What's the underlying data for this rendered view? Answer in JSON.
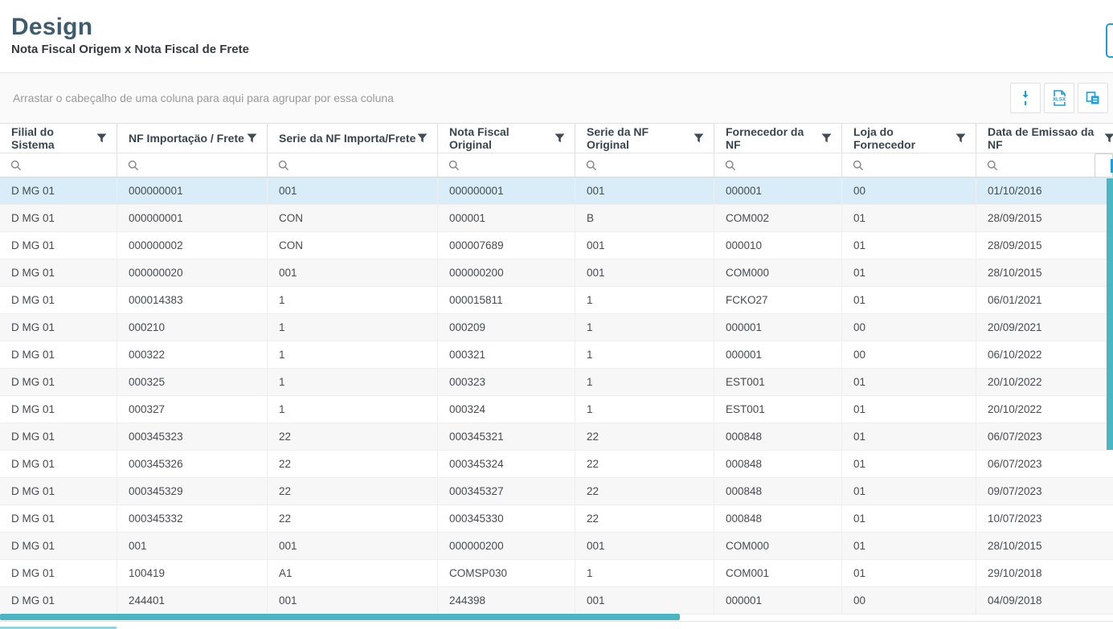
{
  "header": {
    "title": "Design",
    "subtitle": "Nota Fiscal Origem x Nota Fiscal de Frete"
  },
  "toolbar": {
    "group_hint": "Arrastar o cabeçalho de uma coluna para aqui para agrupar por essa coluna",
    "buttons": [
      {
        "name": "row-height-toggle",
        "icon": "collapse-vertical-arrows-icon"
      },
      {
        "name": "export-xlsx",
        "icon": "xlsx-file-icon",
        "label": "XLSX"
      },
      {
        "name": "column-chooser",
        "icon": "column-chooser-icon"
      }
    ]
  },
  "grid": {
    "columns": [
      {
        "label": "Filial do Sistema",
        "filterable": true
      },
      {
        "label": "NF Importaçäo / Frete",
        "filterable": true
      },
      {
        "label": "Serie da NF Importa/Frete",
        "filterable": true
      },
      {
        "label": "Nota Fiscal Original",
        "filterable": true
      },
      {
        "label": "Serie da NF Original",
        "filterable": true
      },
      {
        "label": "Fornecedor da NF",
        "filterable": true
      },
      {
        "label": "Loja do Fornecedor",
        "filterable": true
      },
      {
        "label": "Data de Emissao da NF",
        "filterable": true
      }
    ],
    "filter_values": [
      "",
      "",
      "",
      "",
      "",
      "",
      "",
      ""
    ],
    "selected_row_index": 0,
    "rows": [
      [
        "D MG 01",
        "000000001",
        "001",
        "000000001",
        "001",
        "000001",
        "00",
        "01/10/2016"
      ],
      [
        "D MG 01",
        "000000001",
        "CON",
        "000001",
        "B",
        "COM002",
        "01",
        "28/09/2015"
      ],
      [
        "D MG 01",
        "000000002",
        "CON",
        "000007689",
        "001",
        "000010",
        "01",
        "28/09/2015"
      ],
      [
        "D MG 01",
        "000000020",
        "001",
        "000000200",
        "001",
        "COM000",
        "01",
        "28/10/2015"
      ],
      [
        "D MG 01",
        "000014383",
        "1",
        "000015811",
        "1",
        "FCKO27",
        "01",
        "06/01/2021"
      ],
      [
        "D MG 01",
        "000210",
        "1",
        "000209",
        "1",
        "000001",
        "00",
        "20/09/2021"
      ],
      [
        "D MG 01",
        "000322",
        "1",
        "000321",
        "1",
        "000001",
        "00",
        "06/10/2022"
      ],
      [
        "D MG 01",
        "000325",
        "1",
        "000323",
        "1",
        "EST001",
        "01",
        "20/10/2022"
      ],
      [
        "D MG 01",
        "000327",
        "1",
        "000324",
        "1",
        "EST001",
        "01",
        "20/10/2022"
      ],
      [
        "D MG 01",
        "000345323",
        "22",
        "000345321",
        "22",
        "000848",
        "01",
        "06/07/2023"
      ],
      [
        "D MG 01",
        "000345326",
        "22",
        "000345324",
        "22",
        "000848",
        "01",
        "06/07/2023"
      ],
      [
        "D MG 01",
        "000345329",
        "22",
        "000345327",
        "22",
        "000848",
        "01",
        "09/07/2023"
      ],
      [
        "D MG 01",
        "000345332",
        "22",
        "000345330",
        "22",
        "000848",
        "01",
        "10/07/2023"
      ],
      [
        "D MG 01",
        "001",
        "001",
        "000000200",
        "001",
        "COM000",
        "01",
        "28/10/2015"
      ],
      [
        "D MG 01",
        "100419",
        "A1",
        "COMSP030",
        "1",
        "COM001",
        "01",
        "29/10/2018"
      ],
      [
        "D MG 01",
        "244401",
        "001",
        "244398",
        "001",
        "000001",
        "00",
        "04/09/2018"
      ]
    ]
  },
  "colors": {
    "accent": "#1d9ed9",
    "scrollbar": "#4bb5c4",
    "selected_row": "#d8edf7",
    "title": "#3d5c6e"
  }
}
